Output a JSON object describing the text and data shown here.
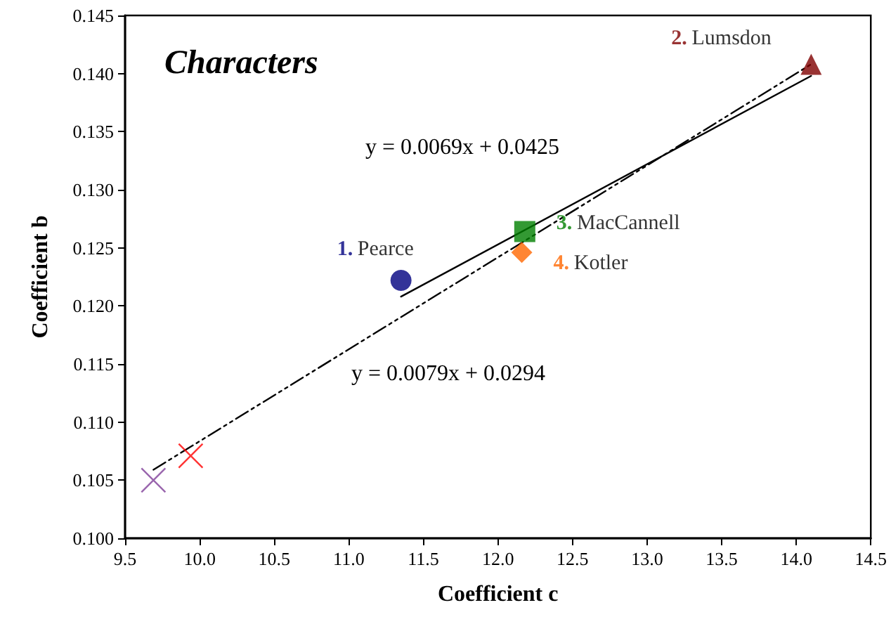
{
  "chart_data": {
    "type": "scatter",
    "title": "Characters",
    "xlabel": "Coefficient c",
    "ylabel": "Coefficient b",
    "xlim": [
      9.5,
      14.5
    ],
    "xticks": [
      {
        "value": 9.5,
        "label": "9.5"
      },
      {
        "value": 10,
        "label": "10.0"
      },
      {
        "value": 10.5,
        "label": "10.5"
      },
      {
        "value": 11,
        "label": "11.0"
      },
      {
        "value": 11.5,
        "label": "11.5"
      },
      {
        "value": 12,
        "label": "12.0"
      },
      {
        "value": 12.5,
        "label": "12.5"
      },
      {
        "value": 13,
        "label": "13.0"
      },
      {
        "value": 13.5,
        "label": "13.5"
      },
      {
        "value": 14,
        "label": "14.0"
      },
      {
        "value": 14.5,
        "label": "14.5"
      }
    ],
    "ylim": [
      0.1,
      0.145
    ],
    "yticks": [
      {
        "value": 0.1,
        "label": "0.100"
      },
      {
        "value": 0.105,
        "label": "0.105"
      },
      {
        "value": 0.11,
        "label": "0.110"
      },
      {
        "value": 0.115,
        "label": "0.115"
      },
      {
        "value": 0.12,
        "label": "0.120"
      },
      {
        "value": 0.125,
        "label": "0.125"
      },
      {
        "value": 0.13,
        "label": "0.130"
      },
      {
        "value": 0.135,
        "label": "0.135"
      },
      {
        "value": 0.14,
        "label": "0.140"
      },
      {
        "value": 0.145,
        "label": "0.145"
      }
    ],
    "grid": false,
    "legend": false,
    "annotations": [
      "y = 0.0069x + 0.0425",
      "y = 0.0079x + 0.0294"
    ],
    "series": [
      {
        "name": "1. Pearce",
        "color": "#000080",
        "marker": "circle",
        "x": [
          11.35
        ],
        "values": [
          0.1222
        ]
      },
      {
        "name": "2. Lumsdon",
        "color": "#800000",
        "marker": "triangle",
        "x": [
          14.1
        ],
        "values": [
          0.1408
        ]
      },
      {
        "name": "3. MacCannell",
        "color": "#008000",
        "marker": "square",
        "x": [
          12.18
        ],
        "values": [
          0.1264
        ]
      },
      {
        "name": "4. Kotler",
        "color": "#ff6600",
        "marker": "diamond",
        "x": [
          12.16
        ],
        "values": [
          0.1246
        ]
      },
      {
        "color": "#ff0000",
        "marker": "cross",
        "x": [
          9.94
        ],
        "values": [
          0.1071
        ]
      },
      {
        "color": "#7f3f98",
        "marker": "cross",
        "x": [
          9.69
        ],
        "values": [
          0.105
        ]
      },
      {
        "type": "line",
        "color": "#000000",
        "line_style": "solid",
        "marker": "none",
        "x": [
          11.35,
          14.1
        ],
        "values": [
          0.1208,
          0.1398
        ]
      },
      {
        "type": "line",
        "color": "#000000",
        "line_style": "dashed",
        "marker": "none",
        "x": [
          9.69,
          14.1
        ],
        "values": [
          0.1059,
          0.1408
        ]
      }
    ]
  }
}
